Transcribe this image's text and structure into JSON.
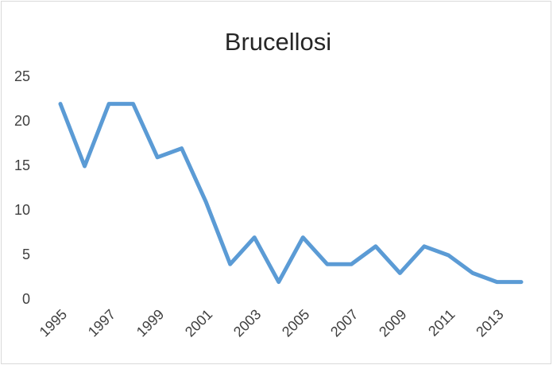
{
  "chart_data": {
    "type": "line",
    "title": "Brucellosi",
    "categories": [
      "1995",
      null,
      "1997",
      null,
      "1999",
      null,
      "2001",
      null,
      "2003",
      null,
      "2005",
      null,
      "2007",
      null,
      "2009",
      null,
      "2011",
      null,
      "2013",
      null
    ],
    "values": [
      22,
      15,
      22,
      22,
      16,
      17,
      11,
      4,
      7,
      2,
      7,
      4,
      4,
      6,
      3,
      6,
      5,
      3,
      2,
      2
    ],
    "color": "#5b9bd5",
    "ylim": [
      0,
      25
    ],
    "yticks": [
      0,
      5,
      10,
      15,
      20,
      25
    ],
    "grid": false
  }
}
